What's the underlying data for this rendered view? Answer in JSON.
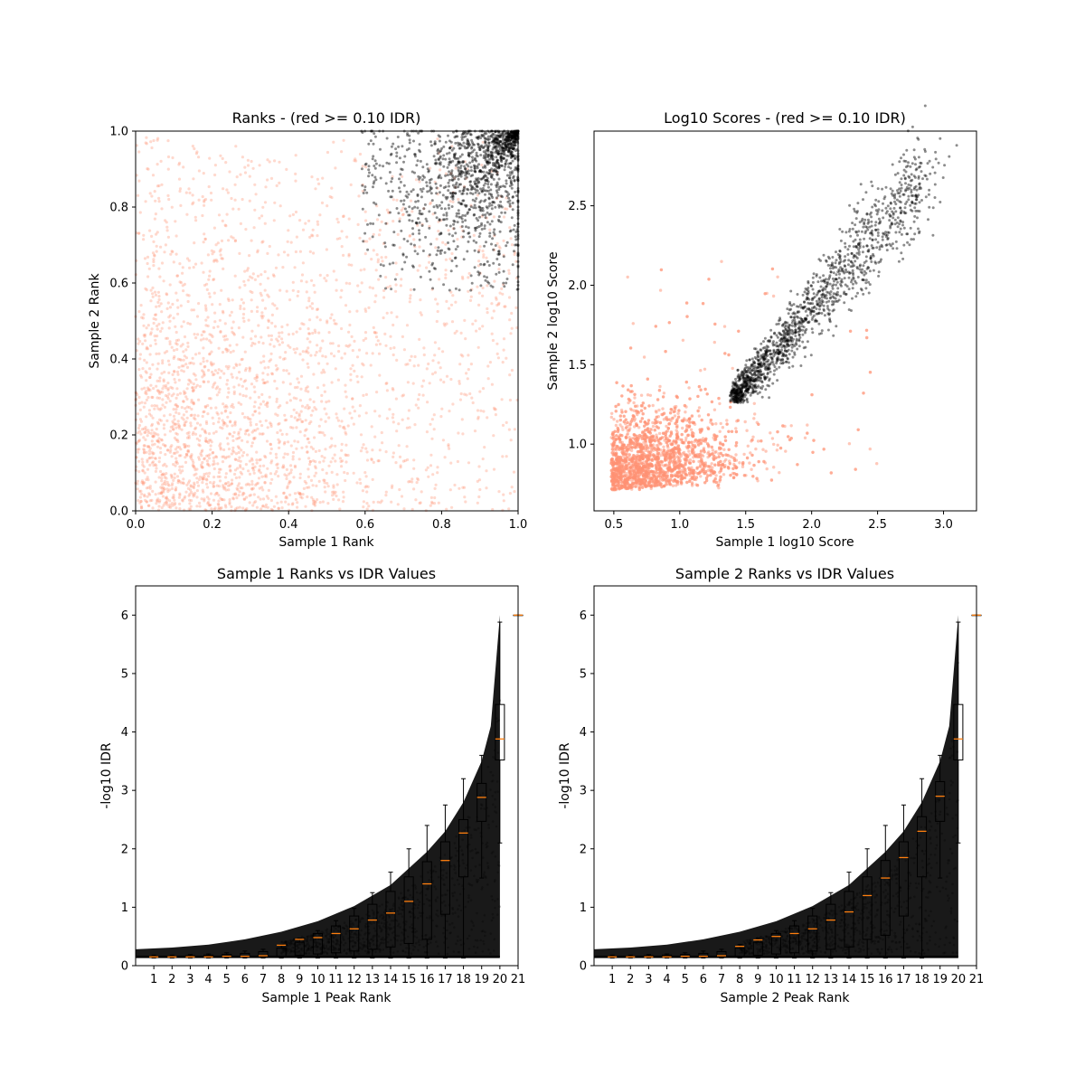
{
  "colors": {
    "not_passing": "#ff9273",
    "passing": "#000000",
    "median": "#ff7f0e",
    "box": "#000000"
  },
  "chart_data": [
    {
      "type": "scatter",
      "title": "Ranks - (red >= 0.10 IDR)",
      "xlabel": "Sample 1 Rank",
      "ylabel": "Sample 2 Rank",
      "xlim": [
        0,
        1
      ],
      "ylim": [
        0,
        1
      ],
      "xticks": [
        0.0,
        0.2,
        0.4,
        0.6,
        0.8,
        1.0
      ],
      "yticks": [
        0.0,
        0.2,
        0.4,
        0.6,
        0.8,
        1.0
      ],
      "xtick_labels": [
        "0.0",
        "0.2",
        "0.4",
        "0.6",
        "0.8",
        "1.0"
      ],
      "ytick_labels": [
        "0.0",
        "0.2",
        "0.4",
        "0.6",
        "0.8",
        "1.0"
      ],
      "series": [
        {
          "color": "not_passing",
          "region": "diffuse over whole square, densest near origin, sparse toward bottom-right and top-left"
        },
        {
          "color": "passing",
          "region": "ellipse hugging diagonal from about (0.6, 0.6) to (1.0, 1.0)"
        }
      ]
    },
    {
      "type": "scatter",
      "title": "Log10 Scores - (red >= 0.10 IDR)",
      "xlabel": "Sample 1 log10 Score",
      "ylabel": "Sample 2 log10 Score",
      "xlim": [
        0.35,
        3.25
      ],
      "ylim": [
        0.58,
        2.97
      ],
      "xticks": [
        0.5,
        1.0,
        1.5,
        2.0,
        2.5,
        3.0
      ],
      "yticks": [
        1.0,
        1.5,
        2.0,
        2.5
      ],
      "xtick_labels": [
        "0.5",
        "1.0",
        "1.5",
        "2.0",
        "2.5",
        "3.0"
      ],
      "ytick_labels": [
        "1.0",
        "1.5",
        "2.0",
        "2.5"
      ],
      "series": [
        {
          "color": "not_passing",
          "region": "dense cloud x 0.47–1.6, y 0.71–1.5 with sparse points to x 2.5, y 2.3"
        },
        {
          "color": "passing",
          "region": "elongated cloud from (1.35, 1.27) up along the diagonal to (2.8, 2.7), outlier near (3.1, 2.88)"
        }
      ]
    },
    {
      "type": "scatter",
      "title": "Sample 1 Ranks vs IDR Values",
      "xlabel": "Sample 1 Peak Rank",
      "ylabel": "-log10 IDR",
      "xlim": [
        0,
        21
      ],
      "ylim": [
        0,
        6.5
      ],
      "xticks": [
        1,
        2,
        3,
        4,
        5,
        6,
        7,
        8,
        9,
        10,
        11,
        12,
        13,
        14,
        15,
        16,
        17,
        18,
        19,
        20,
        21
      ],
      "yticks": [
        0,
        1,
        2,
        3,
        4,
        5,
        6
      ],
      "xtick_labels": [
        "1",
        "2",
        "3",
        "4",
        "5",
        "6",
        "7",
        "8",
        "9",
        "10",
        "11",
        "12",
        "13",
        "14",
        "15",
        "16",
        "17",
        "18",
        "19",
        "20",
        "21"
      ],
      "ytick_labels": [
        "0",
        "1",
        "2",
        "3",
        "4",
        "5",
        "6"
      ],
      "boxplot": {
        "positions": [
          1,
          2,
          3,
          4,
          5,
          6,
          7,
          8,
          9,
          10,
          11,
          12,
          13,
          14,
          15,
          16,
          17,
          18,
          19,
          20,
          21
        ],
        "q1": [
          0.14,
          0.14,
          0.14,
          0.14,
          0.14,
          0.14,
          0.14,
          0.16,
          0.18,
          0.2,
          0.22,
          0.25,
          0.28,
          0.32,
          0.38,
          0.45,
          0.88,
          1.52,
          2.47,
          3.52,
          6.0
        ],
        "median": [
          0.15,
          0.15,
          0.15,
          0.15,
          0.16,
          0.16,
          0.17,
          0.35,
          0.45,
          0.48,
          0.55,
          0.63,
          0.78,
          0.9,
          1.1,
          1.4,
          1.8,
          2.27,
          2.88,
          3.88,
          6.0
        ],
        "q3": [
          0.16,
          0.16,
          0.17,
          0.18,
          0.19,
          0.21,
          0.24,
          0.3,
          0.4,
          0.55,
          0.68,
          0.85,
          1.05,
          1.27,
          1.52,
          1.78,
          2.12,
          2.5,
          3.12,
          4.47,
          6.0
        ],
        "whisker_low": [
          0.13,
          0.13,
          0.13,
          0.13,
          0.13,
          0.13,
          0.13,
          0.13,
          0.13,
          0.13,
          0.13,
          0.13,
          0.13,
          0.13,
          0.13,
          0.13,
          0.13,
          0.13,
          1.5,
          2.1,
          6.0
        ],
        "whisker_high": [
          0.18,
          0.18,
          0.19,
          0.2,
          0.22,
          0.25,
          0.28,
          0.36,
          0.47,
          0.6,
          0.77,
          0.98,
          1.25,
          1.6,
          2.0,
          2.4,
          2.75,
          3.2,
          3.6,
          5.88,
          6.0
        ]
      },
      "envelope": {
        "x": [
          0,
          2,
          4,
          6,
          8,
          10,
          12,
          14,
          16,
          17,
          18,
          19,
          19.5,
          20
        ],
        "upper": [
          0.28,
          0.31,
          0.36,
          0.45,
          0.58,
          0.76,
          1.02,
          1.38,
          1.95,
          2.3,
          2.8,
          3.5,
          4.1,
          6.0
        ],
        "lower": [
          0.15,
          0.15,
          0.15,
          0.15,
          0.15,
          0.15,
          0.15,
          0.15,
          0.15,
          0.15,
          0.15,
          0.15,
          0.15,
          0.15
        ]
      }
    },
    {
      "type": "scatter",
      "title": "Sample 2 Ranks vs IDR Values",
      "xlabel": "Sample 2 Peak Rank",
      "ylabel": "-log10 IDR",
      "xlim": [
        0,
        21
      ],
      "ylim": [
        0,
        6.5
      ],
      "xticks": [
        1,
        2,
        3,
        4,
        5,
        6,
        7,
        8,
        9,
        10,
        11,
        12,
        13,
        14,
        15,
        16,
        17,
        18,
        19,
        20,
        21
      ],
      "yticks": [
        0,
        1,
        2,
        3,
        4,
        5,
        6
      ],
      "xtick_labels": [
        "1",
        "2",
        "3",
        "4",
        "5",
        "6",
        "7",
        "8",
        "9",
        "10",
        "11",
        "12",
        "13",
        "14",
        "15",
        "16",
        "17",
        "18",
        "19",
        "20",
        "21"
      ],
      "ytick_labels": [
        "0",
        "1",
        "2",
        "3",
        "4",
        "5",
        "6"
      ],
      "boxplot": {
        "positions": [
          1,
          2,
          3,
          4,
          5,
          6,
          7,
          8,
          9,
          10,
          11,
          12,
          13,
          14,
          15,
          16,
          17,
          18,
          19,
          20,
          21
        ],
        "q1": [
          0.14,
          0.14,
          0.14,
          0.14,
          0.14,
          0.14,
          0.14,
          0.16,
          0.18,
          0.2,
          0.22,
          0.25,
          0.28,
          0.32,
          0.45,
          0.52,
          0.85,
          1.52,
          2.47,
          3.52,
          6.0
        ],
        "median": [
          0.15,
          0.15,
          0.15,
          0.15,
          0.16,
          0.16,
          0.17,
          0.33,
          0.44,
          0.5,
          0.55,
          0.63,
          0.78,
          0.92,
          1.2,
          1.5,
          1.85,
          2.3,
          2.9,
          3.88,
          6.0
        ],
        "q3": [
          0.16,
          0.16,
          0.17,
          0.18,
          0.19,
          0.21,
          0.24,
          0.3,
          0.4,
          0.55,
          0.68,
          0.85,
          1.05,
          1.27,
          1.52,
          1.8,
          2.12,
          2.55,
          3.15,
          4.47,
          6.0
        ],
        "whisker_low": [
          0.13,
          0.13,
          0.13,
          0.13,
          0.13,
          0.13,
          0.13,
          0.13,
          0.13,
          0.13,
          0.13,
          0.13,
          0.13,
          0.13,
          0.13,
          0.13,
          0.13,
          0.13,
          1.5,
          2.1,
          6.0
        ],
        "whisker_high": [
          0.18,
          0.18,
          0.19,
          0.2,
          0.22,
          0.25,
          0.28,
          0.36,
          0.47,
          0.6,
          0.77,
          0.98,
          1.25,
          1.6,
          2.0,
          2.4,
          2.75,
          3.2,
          3.6,
          5.88,
          6.0
        ]
      },
      "envelope": {
        "x": [
          0,
          2,
          4,
          6,
          8,
          10,
          12,
          14,
          16,
          17,
          18,
          19,
          19.5,
          20
        ],
        "upper": [
          0.28,
          0.31,
          0.36,
          0.45,
          0.58,
          0.76,
          1.02,
          1.38,
          1.95,
          2.3,
          2.8,
          3.5,
          4.1,
          6.0
        ],
        "lower": [
          0.15,
          0.15,
          0.15,
          0.15,
          0.15,
          0.15,
          0.15,
          0.15,
          0.15,
          0.15,
          0.15,
          0.15,
          0.15,
          0.15
        ]
      }
    }
  ]
}
